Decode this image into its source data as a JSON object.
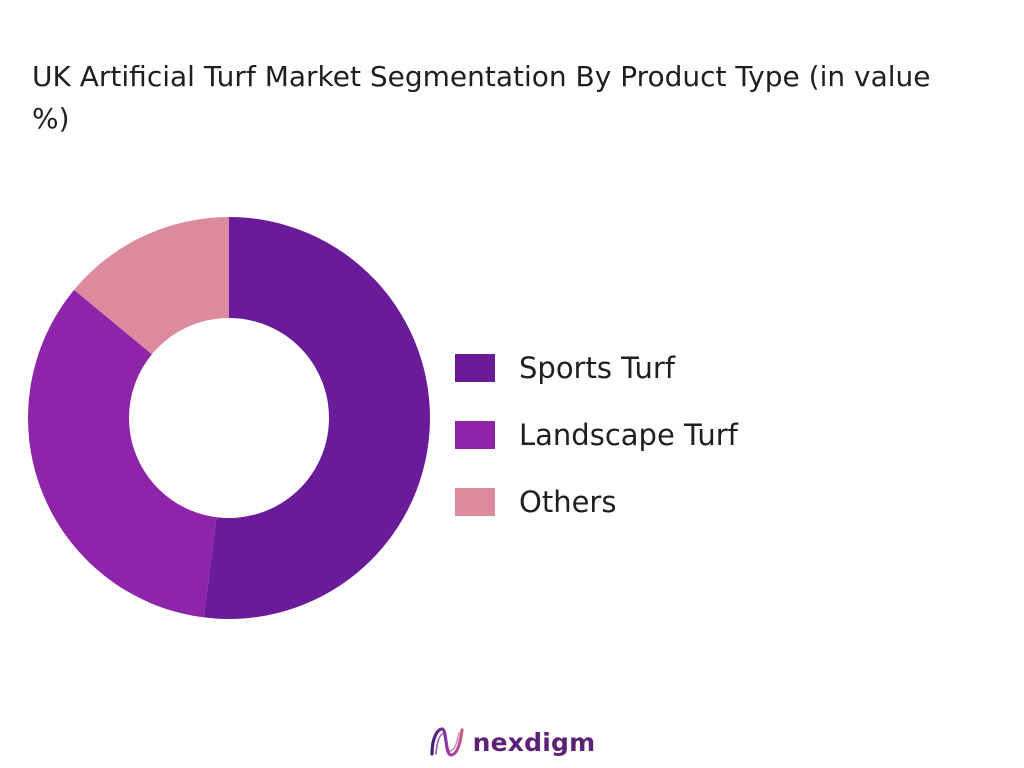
{
  "title": "UK Artificial Turf Market Segmentation By Product Type (in value %)",
  "brand": {
    "name": "nexdigm",
    "logo_icon": "nexdigm-wave-icon",
    "color": "#5d2277"
  },
  "chart_data": {
    "type": "pie",
    "style": "donut",
    "unit": "%",
    "legend_position": "right",
    "categories": [
      "Sports Turf",
      "Landscape Turf",
      "Others"
    ],
    "values": [
      52,
      34,
      14
    ],
    "colors": [
      "#6a1b9a",
      "#8e24aa",
      "#dc8a9d"
    ]
  }
}
